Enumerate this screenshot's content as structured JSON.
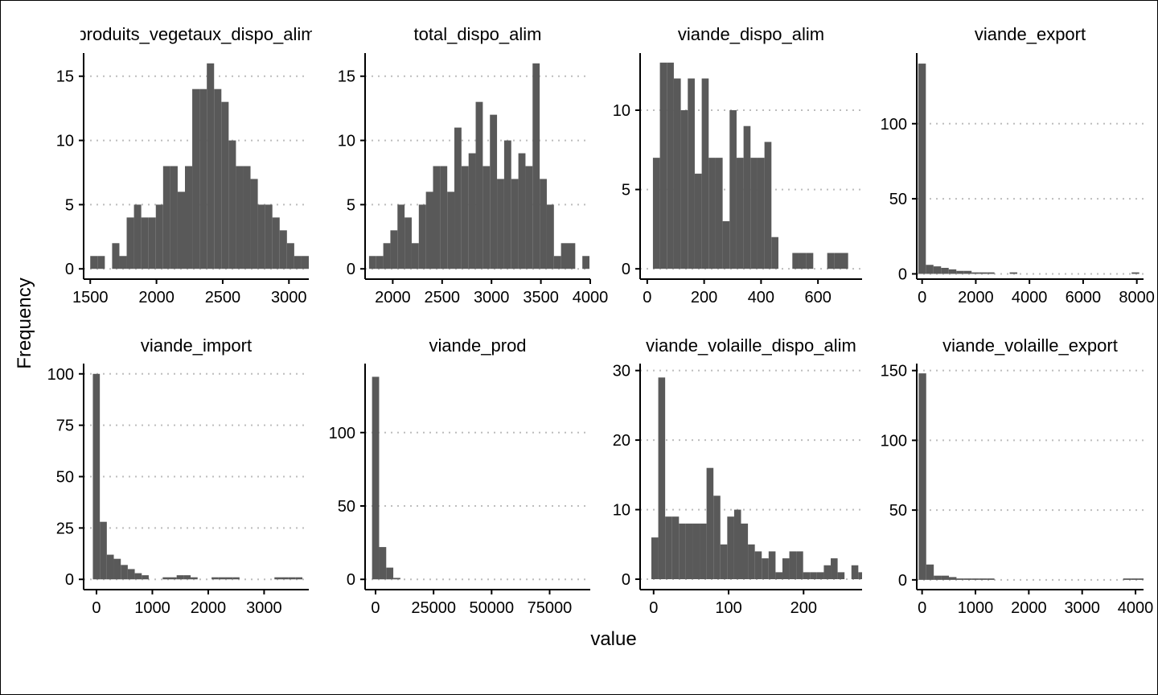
{
  "chart_data": {
    "type": "bar",
    "xlabel": "value",
    "ylabel": "Frequency",
    "grid": "horizontal dotted",
    "bar_color": "#595959",
    "grid_color": "#bdbdbd",
    "panels": [
      {
        "title": "produits_vegetaux_dispo_alim",
        "xlim": [
          1450,
          3150
        ],
        "ylim": [
          -0.8,
          16.8
        ],
        "xticks": [
          1500,
          2000,
          2500,
          3000
        ],
        "yticks": [
          0,
          5,
          10,
          15
        ],
        "bin_start": 1500,
        "bin_width": 55,
        "counts": [
          1,
          1,
          0,
          2,
          1,
          4,
          5,
          4,
          4,
          5,
          8,
          8,
          6,
          8,
          14,
          14,
          16,
          14,
          13,
          10,
          8,
          8,
          7,
          5,
          5,
          4,
          3,
          2,
          1,
          1,
          1,
          2
        ]
      },
      {
        "title": "total_dispo_alim",
        "xlim": [
          1720,
          4000
        ],
        "ylim": [
          -0.8,
          16.8
        ],
        "xticks": [
          2000,
          2500,
          3000,
          3500,
          4000
        ],
        "yticks": [
          0,
          5,
          10,
          15
        ],
        "bin_start": 1760,
        "bin_width": 72,
        "counts": [
          1,
          1,
          2,
          3,
          5,
          4,
          2,
          5,
          6,
          8,
          8,
          6,
          11,
          8,
          9,
          13,
          8,
          12,
          7,
          10,
          7,
          9,
          8,
          16,
          7,
          5,
          1,
          2,
          2,
          0,
          1
        ]
      },
      {
        "title": "viande_dispo_alim",
        "xlim": [
          -25,
          755
        ],
        "ylim": [
          -0.65,
          13.6
        ],
        "xticks": [
          0,
          200,
          400,
          600
        ],
        "yticks": [
          0,
          5,
          10
        ],
        "bin_start": 20,
        "bin_width": 24.5,
        "counts": [
          7,
          13,
          13,
          12,
          10,
          12,
          6,
          12,
          7,
          7,
          3,
          10,
          7,
          9,
          7,
          7,
          8,
          2,
          0,
          0,
          1,
          1,
          1,
          0,
          0,
          1,
          1,
          1
        ]
      },
      {
        "title": "viande_export",
        "xlim": [
          -200,
          8250
        ],
        "ylim": [
          -3.5,
          147
        ],
        "xticks": [
          0,
          2000,
          4000,
          6000,
          8000
        ],
        "yticks": [
          0,
          50,
          100
        ],
        "bin_start": -145,
        "bin_width": 284,
        "counts": [
          140,
          6,
          5,
          4,
          3,
          2,
          2,
          1,
          1,
          1,
          0,
          0,
          1,
          0,
          0,
          0,
          0,
          0,
          0,
          0,
          0,
          0,
          0,
          0,
          0,
          0,
          0,
          0,
          1
        ]
      },
      {
        "title": "viande_import",
        "xlim": [
          -230,
          3800
        ],
        "ylim": [
          -5,
          105
        ],
        "xticks": [
          0,
          1000,
          2000,
          3000
        ],
        "yticks": [
          0,
          25,
          50,
          75,
          100
        ],
        "bin_start": -65,
        "bin_width": 125,
        "counts": [
          100,
          28,
          12,
          10,
          7,
          5,
          3,
          2,
          0,
          0,
          1,
          1,
          2,
          2,
          1,
          0,
          0,
          1,
          1,
          1,
          1,
          0,
          0,
          0,
          0,
          0,
          1,
          1,
          1,
          1
        ]
      },
      {
        "title": "viande_prod",
        "xlim": [
          -4500,
          92500
        ],
        "ylim": [
          -7,
          147
        ],
        "xticks": [
          0,
          25000,
          50000,
          75000
        ],
        "yticks": [
          0,
          50,
          100
        ],
        "bin_start": -1500,
        "bin_width": 3050,
        "counts": [
          138,
          22,
          8,
          1,
          0,
          0,
          0,
          0,
          0,
          0,
          0,
          0,
          0,
          0,
          0,
          0,
          0,
          0,
          0,
          0,
          0,
          0,
          0,
          0,
          0,
          0,
          0,
          0,
          0,
          0
        ]
      },
      {
        "title": "viande_volaille_dispo_alim",
        "xlim": [
          -18,
          278
        ],
        "ylim": [
          -1.5,
          31
        ],
        "xticks": [
          0,
          100,
          200
        ],
        "yticks": [
          0,
          10,
          20,
          30
        ],
        "bin_start": -3,
        "bin_width": 9.2,
        "counts": [
          6,
          29,
          9,
          9,
          8,
          8,
          8,
          8,
          16,
          12,
          5,
          9,
          10,
          8,
          5,
          4,
          3,
          4,
          1,
          3,
          4,
          4,
          1,
          1,
          1,
          2,
          3,
          1,
          0,
          2,
          1
        ]
      },
      {
        "title": "viande_volaille_export",
        "xlim": [
          -100,
          4150
        ],
        "ylim": [
          -7,
          155
        ],
        "xticks": [
          0,
          1000,
          2000,
          3000,
          4000
        ],
        "yticks": [
          0,
          50,
          100,
          150
        ],
        "bin_start": -65,
        "bin_width": 142,
        "counts": [
          148,
          11,
          3,
          3,
          2,
          1,
          1,
          1,
          1,
          1,
          0,
          0,
          0,
          0,
          0,
          0,
          0,
          0,
          0,
          0,
          0,
          0,
          0,
          0,
          0,
          0,
          0,
          1,
          1,
          1
        ]
      }
    ]
  }
}
